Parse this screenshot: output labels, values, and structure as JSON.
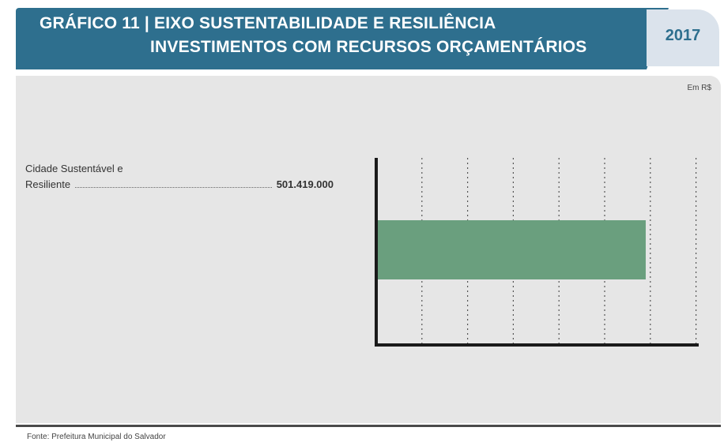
{
  "header": {
    "title_line1": "GRÁFICO 11 | EIXO SUSTENTABILIDADE E RESILIÊNCIA",
    "title_line2": "INVESTIMENTOS COM RECURSOS ORÇAMENTÁRIOS",
    "year": "2017"
  },
  "unit": "Em R$",
  "source": "Fonte: Prefeitura Municipal do Salvador",
  "colors": {
    "header": "#2e6f8e",
    "year_tab": "#dbe3ec",
    "panel": "#e6e6e6",
    "bar": "#6a9f7e"
  },
  "chart_data": {
    "type": "bar",
    "orientation": "horizontal",
    "categories": [
      "Cidade Sustentável e Resiliente"
    ],
    "values": [
      501419000
    ],
    "data_labels": [
      "501.419.000"
    ],
    "xlim": [
      0,
      600000000
    ],
    "grid": true
  },
  "labels": {
    "category_line1": "Cidade Sustentável e",
    "category_line2": "Resiliente"
  }
}
